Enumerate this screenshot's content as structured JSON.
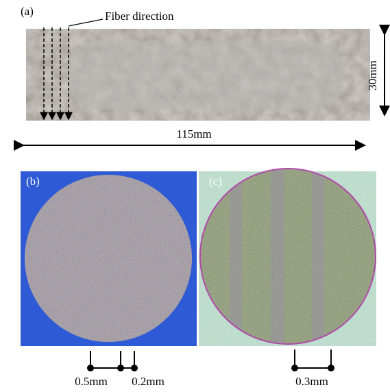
{
  "panels": [
    {
      "label": "(a)",
      "annotations": [
        "Fiber direction",
        "30mm",
        "115mm"
      ]
    },
    {
      "label": "(b)",
      "scale_labels": [
        "0.5mm",
        "0.2mm"
      ]
    },
    {
      "label": "(c)",
      "scale_labels": [
        "0.3mm"
      ]
    }
  ]
}
